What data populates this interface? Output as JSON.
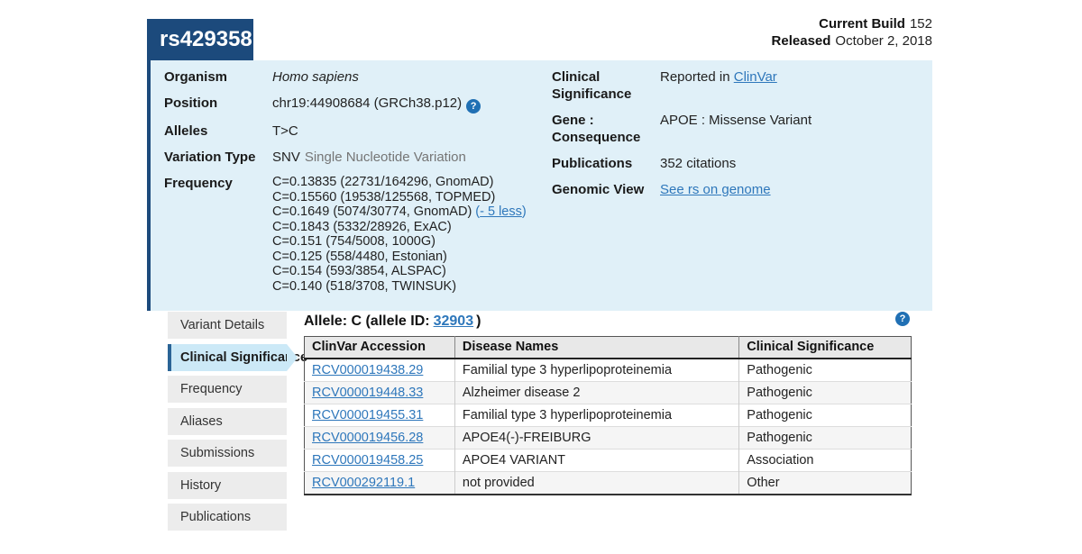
{
  "topbar": {
    "build_label": "Current Build",
    "build_value": "152",
    "released_label": "Released",
    "released_value": "October 2, 2018"
  },
  "header": {
    "title": "rs429358"
  },
  "summary": {
    "organism_label": "Organism",
    "organism_value": "Homo sapiens",
    "position_label": "Position",
    "position_value": "chr19:44908684 (GRCh38.p12)",
    "alleles_label": "Alleles",
    "alleles_value": "T>C",
    "variation_type_label": "Variation Type",
    "variation_type_value": "SNV",
    "variation_type_detail": "Single Nucleotide Variation",
    "frequency_label": "Frequency",
    "frequency_lines": [
      "C=0.13835 (22731/164296, GnomAD)",
      "C=0.15560 (19538/125568, TOPMED)",
      "C=0.1649 (5074/30774, GnomAD)",
      "C=0.1843 (5332/28926, ExAC)",
      "C=0.151 (754/5008, 1000G)",
      "C=0.125 (558/4480, Estonian)",
      "C=0.154 (593/3854, ALSPAC)",
      "C=0.140 (518/3708, TWINSUK)"
    ],
    "less_open": "(",
    "less_link": "- 5 less",
    "less_close": ")",
    "clinsig_label": "Clinical Significance",
    "clinsig_prefix": "Reported in",
    "clinsig_link": "ClinVar",
    "gene_label": "Gene : Consequence",
    "gene_value": "APOE : Missense Variant",
    "publications_label": "Publications",
    "publications_value": "352 citations",
    "genomic_label": "Genomic View",
    "genomic_link": "See rs on genome"
  },
  "icons": {
    "help": "?"
  },
  "sidebar": {
    "items": [
      {
        "label": "Variant Details"
      },
      {
        "label": "Clinical Significance"
      },
      {
        "label": "Frequency"
      },
      {
        "label": "Aliases"
      },
      {
        "label": "Submissions"
      },
      {
        "label": "History"
      },
      {
        "label": "Publications"
      }
    ],
    "active_index": 1
  },
  "main": {
    "allele_heading_prefix": "Allele: C (allele ID:",
    "allele_id_link": "32903",
    "allele_heading_suffix": ")"
  },
  "table": {
    "columns": [
      "ClinVar Accession",
      "Disease Names",
      "Clinical Significance"
    ],
    "rows": [
      {
        "accession": "RCV000019438.29",
        "disease": "Familial type 3 hyperlipoproteinemia",
        "significance": "Pathogenic"
      },
      {
        "accession": "RCV000019448.33",
        "disease": "Alzheimer disease 2",
        "significance": "Pathogenic"
      },
      {
        "accession": "RCV000019455.31",
        "disease": "Familial type 3 hyperlipoproteinemia",
        "significance": "Pathogenic"
      },
      {
        "accession": "RCV000019456.28",
        "disease": "APOE4(-)-FREIBURG",
        "significance": "Pathogenic"
      },
      {
        "accession": "RCV000019458.25",
        "disease": "APOE4 VARIANT",
        "significance": "Association"
      },
      {
        "accession": "RCV000292119.1",
        "disease": "not provided",
        "significance": "Other"
      }
    ]
  },
  "colors": {
    "header_blue": "#1c4a7c",
    "panel_blue": "#e0f0f8",
    "active_tab_blue": "#cce9f7",
    "active_tab_border": "#2a6496",
    "link_blue": "#2e77bb",
    "help_icon_blue": "#2070b4"
  }
}
